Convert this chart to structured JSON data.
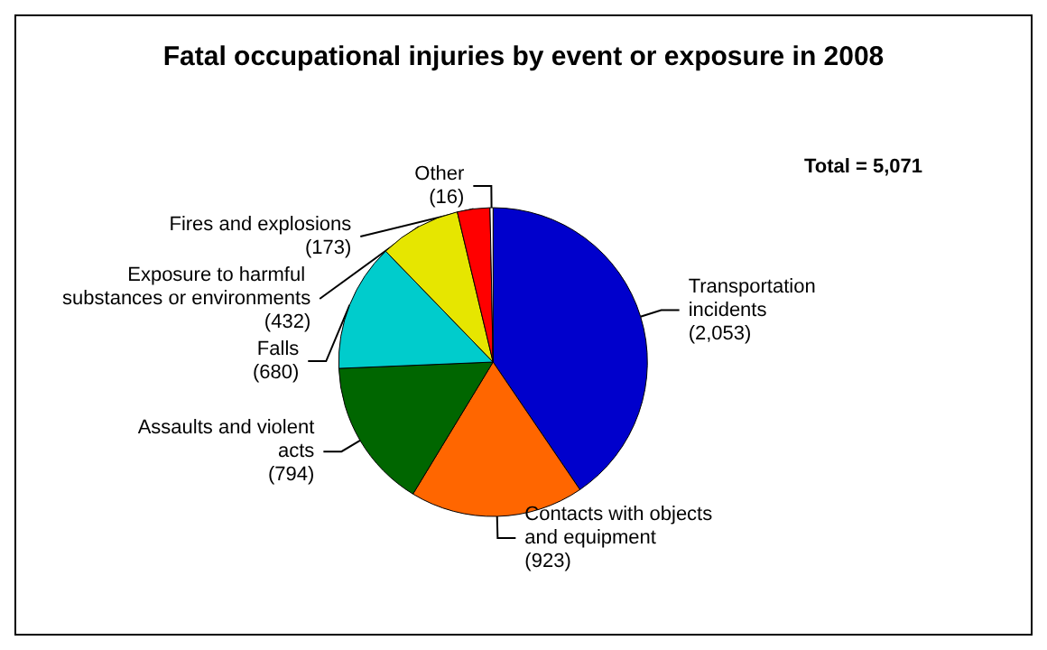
{
  "chart_data": {
    "type": "pie",
    "title": "Fatal occupational injuries by event or exposure in 2008",
    "categories": [
      "Transportation incidents",
      "Contacts with objects and equipment",
      "Assaults and violent acts",
      "Falls",
      "Exposure to harmful substances or environments",
      "Fires and explosions",
      "Other"
    ],
    "values": [
      2053,
      923,
      794,
      680,
      432,
      173,
      16
    ],
    "value_labels": [
      "(2,053)",
      "(923)",
      "(794)",
      "(680)",
      "(432)",
      "(173)",
      "(16)"
    ],
    "colors": [
      "#0000cc",
      "#ff6600",
      "#006600",
      "#00cccc",
      "#e6e600",
      "#ff0000",
      "#ffffff"
    ],
    "annotations": [
      "Total = 5,071"
    ],
    "legend": false
  }
}
